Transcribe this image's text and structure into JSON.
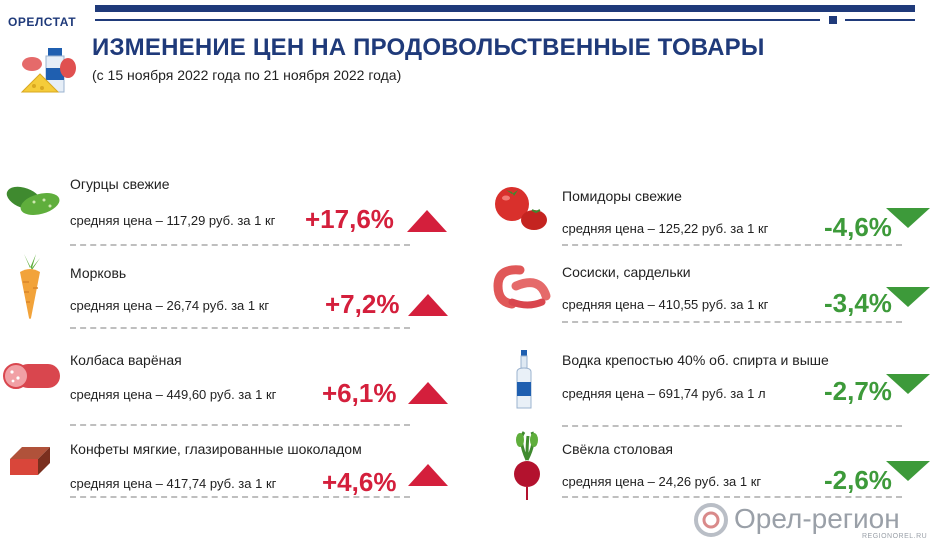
{
  "header": {
    "org": "ОРЕЛСТАТ",
    "title": "ИЗМЕНЕНИЕ ЦЕН НА ПРОДОВОЛЬСТВЕННЫЕ ТОВАРЫ",
    "subtitle": "(с 15 ноября 2022 года по 21 ноября 2022 года)",
    "accent_color": "#1f3a7a"
  },
  "left_items": [
    {
      "name": "Огурцы свежие",
      "price": "средняя цена – 117,29 руб. за 1 кг",
      "change": "+17,6%",
      "icon": "cucumber-icon"
    },
    {
      "name": "Морковь",
      "price": "средняя цена – 26,74 руб. за 1 кг",
      "change": "+7,2%",
      "icon": "carrot-icon"
    },
    {
      "name": "Колбаса варёная",
      "price": "средняя цена – 449,60 руб. за 1 кг",
      "change": "+6,1%",
      "icon": "sausage-icon"
    },
    {
      "name": "Конфеты мягкие, глазированные шоколадом",
      "price": "средняя цена – 417,74 руб. за 1 кг",
      "change": "+4,6%",
      "icon": "candy-icon"
    }
  ],
  "right_items": [
    {
      "name": "Помидоры свежие",
      "price": "средняя цена – 125,22 руб. за 1 кг",
      "change": "-4,6%",
      "icon": "tomato-icon"
    },
    {
      "name": "Сосиски, сардельки",
      "price": "средняя цена –  410,55 руб. за 1 кг",
      "change": "-3,4%",
      "icon": "wieners-icon"
    },
    {
      "name": "Водка крепостью 40% об. спирта и выше",
      "price": "средняя цена – 691,74 руб. за 1 л",
      "change": "-2,7%",
      "icon": "vodka-bottle-icon"
    },
    {
      "name": "Свёкла столовая",
      "price": "средняя цена – 24,26 руб. за 1 кг",
      "change": "-2,6%",
      "icon": "beet-icon"
    }
  ],
  "colors": {
    "increase": "#d41f3c",
    "decrease": "#3d9a3a"
  },
  "watermark": {
    "text": "Орел-регион",
    "sub": "REGIONOREL.RU"
  }
}
